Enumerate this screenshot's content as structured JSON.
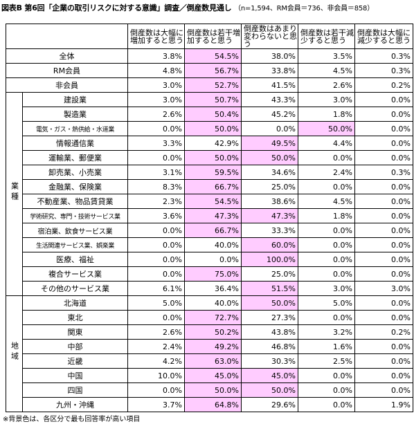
{
  "title": "図表B 第6回「企業の取引リスクに対する意識」調査／倒産数見通し",
  "title_note": "（n=1,594、RM会員＝736、非会員＝858）",
  "columns": [
    "倒産数は大幅に増加すると思う",
    "倒産数は若干増加すると思う",
    "倒産数はあまり変わらないと思う",
    "倒産数は若干減少すると思う",
    "倒産数は大幅に減少すると思う"
  ],
  "top_rows": [
    {
      "label": "全体",
      "values": [
        "3.8%",
        "54.5%",
        "38.0%",
        "3.5%",
        "0.3%"
      ],
      "hl": [
        1
      ]
    },
    {
      "label": "RM会員",
      "values": [
        "4.8%",
        "56.7%",
        "33.8%",
        "4.5%",
        "0.3%"
      ],
      "hl": [
        1
      ]
    },
    {
      "label": "非会員",
      "values": [
        "3.0%",
        "52.7%",
        "41.5%",
        "2.6%",
        "0.2%"
      ],
      "hl": [
        1
      ]
    }
  ],
  "groups": [
    {
      "name": "業種",
      "rows": [
        {
          "label": "建設業",
          "values": [
            "3.0%",
            "50.7%",
            "43.3%",
            "3.0%",
            "0.0%"
          ],
          "hl": [
            1
          ]
        },
        {
          "label": "製造業",
          "values": [
            "2.6%",
            "50.4%",
            "45.2%",
            "1.8%",
            "0.0%"
          ],
          "hl": [
            1
          ]
        },
        {
          "label": "電気・ガス・熱供給・水道業",
          "values": [
            "0.0%",
            "50.0%",
            "0.0%",
            "50.0%",
            "0.0%"
          ],
          "hl": [
            1,
            3
          ]
        },
        {
          "label": "情報通信業",
          "values": [
            "3.3%",
            "42.9%",
            "49.5%",
            "4.4%",
            "0.0%"
          ],
          "hl": [
            2
          ]
        },
        {
          "label": "運輸業、郵便業",
          "values": [
            "0.0%",
            "50.0%",
            "50.0%",
            "0.0%",
            "0.0%"
          ],
          "hl": [
            1,
            2
          ]
        },
        {
          "label": "卸売業、小売業",
          "values": [
            "3.1%",
            "59.5%",
            "34.6%",
            "2.4%",
            "0.3%"
          ],
          "hl": [
            1
          ]
        },
        {
          "label": "金融業、保険業",
          "values": [
            "8.3%",
            "66.7%",
            "25.0%",
            "0.0%",
            "0.0%"
          ],
          "hl": [
            1
          ]
        },
        {
          "label": "不動産業、物品賃貸業",
          "values": [
            "2.3%",
            "54.5%",
            "38.6%",
            "4.5%",
            "0.0%"
          ],
          "hl": [
            1
          ]
        },
        {
          "label": "学術研究、専門・技術サービス業",
          "values": [
            "3.6%",
            "47.3%",
            "47.3%",
            "1.8%",
            "0.0%"
          ],
          "hl": [
            1,
            2
          ]
        },
        {
          "label": "宿泊業、飲食サービス業",
          "values": [
            "0.0%",
            "66.7%",
            "33.3%",
            "0.0%",
            "0.0%"
          ],
          "hl": [
            1
          ]
        },
        {
          "label": "生活関連サービス業、娯楽業",
          "values": [
            "0.0%",
            "40.0%",
            "60.0%",
            "0.0%",
            "0.0%"
          ],
          "hl": [
            2
          ]
        },
        {
          "label": "医療、福祉",
          "values": [
            "0.0%",
            "0.0%",
            "100.0%",
            "0.0%",
            "0.0%"
          ],
          "hl": [
            2
          ]
        },
        {
          "label": "複合サービス業",
          "values": [
            "0.0%",
            "75.0%",
            "25.0%",
            "0.0%",
            "0.0%"
          ],
          "hl": [
            1
          ]
        },
        {
          "label": "その他のサービス業",
          "values": [
            "6.1%",
            "36.4%",
            "51.5%",
            "3.0%",
            "3.0%"
          ],
          "hl": [
            2
          ]
        }
      ]
    },
    {
      "name": "地域",
      "rows": [
        {
          "label": "北海道",
          "values": [
            "5.0%",
            "40.0%",
            "50.0%",
            "5.0%",
            "0.0%"
          ],
          "hl": [
            2
          ]
        },
        {
          "label": "東北",
          "values": [
            "0.0%",
            "72.7%",
            "27.3%",
            "0.0%",
            "0.0%"
          ],
          "hl": [
            1
          ]
        },
        {
          "label": "関東",
          "values": [
            "2.6%",
            "50.2%",
            "43.8%",
            "3.2%",
            "0.2%"
          ],
          "hl": [
            1
          ]
        },
        {
          "label": "中部",
          "values": [
            "2.4%",
            "49.2%",
            "46.8%",
            "1.6%",
            "0.0%"
          ],
          "hl": [
            1
          ]
        },
        {
          "label": "近畿",
          "values": [
            "4.2%",
            "63.0%",
            "30.3%",
            "2.5%",
            "0.0%"
          ],
          "hl": [
            1
          ]
        },
        {
          "label": "中国",
          "values": [
            "10.0%",
            "45.0%",
            "45.0%",
            "0.0%",
            "0.0%"
          ],
          "hl": [
            1,
            2
          ]
        },
        {
          "label": "四国",
          "values": [
            "0.0%",
            "50.0%",
            "50.0%",
            "0.0%",
            "0.0%"
          ],
          "hl": [
            1,
            2
          ]
        },
        {
          "label": "九州・沖縄",
          "values": [
            "3.7%",
            "64.8%",
            "29.6%",
            "0.0%",
            "1.9%"
          ],
          "hl": [
            1
          ]
        }
      ]
    }
  ],
  "footnote": "※背景色は、各区分で最も回答率が高い項目",
  "colors": {
    "highlight": "#ffccff",
    "border": "#000000"
  }
}
